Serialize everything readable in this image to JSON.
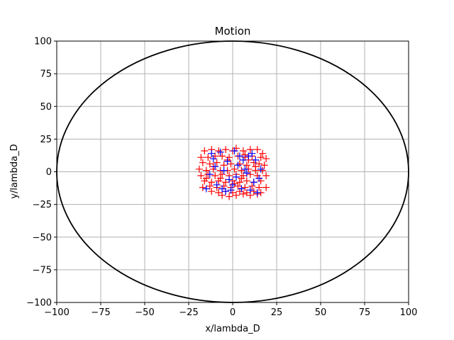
{
  "chart_data": {
    "type": "scatter",
    "title": "Motion",
    "xlabel": "x/lambda_D",
    "ylabel": "y/lambda_D",
    "xlim": [
      -100,
      100
    ],
    "ylim": [
      -100,
      100
    ],
    "xticks": [
      -100,
      -75,
      -50,
      -25,
      0,
      25,
      50,
      75,
      100
    ],
    "yticks": [
      -100,
      -75,
      -50,
      -25,
      0,
      25,
      50,
      75,
      100
    ],
    "xtick_labels": [
      "−100",
      "−75",
      "−50",
      "−25",
      "0",
      "25",
      "50",
      "75",
      "100"
    ],
    "ytick_labels": [
      "−100",
      "−75",
      "−50",
      "−25",
      "0",
      "25",
      "50",
      "75",
      "100"
    ],
    "grid": true,
    "boundary_circle": {
      "center": [
        0,
        0
      ],
      "radius": 100,
      "color": "#000000"
    },
    "series": [
      {
        "marker": "+",
        "color": "#ff0000",
        "points": [
          [
            -16,
            16
          ],
          [
            -12,
            17
          ],
          [
            -8,
            16
          ],
          [
            -4,
            17
          ],
          [
            0,
            16
          ],
          [
            2,
            18
          ],
          [
            6,
            16
          ],
          [
            10,
            17
          ],
          [
            14,
            17
          ],
          [
            17,
            14
          ],
          [
            -18,
            11
          ],
          [
            -14,
            11
          ],
          [
            -10,
            12
          ],
          [
            -6,
            12
          ],
          [
            -2,
            11
          ],
          [
            3,
            12
          ],
          [
            7,
            11
          ],
          [
            11,
            12
          ],
          [
            16,
            11
          ],
          [
            19,
            10
          ],
          [
            -17,
            7
          ],
          [
            -13,
            6
          ],
          [
            -9,
            7
          ],
          [
            -5,
            5
          ],
          [
            -1,
            6
          ],
          [
            4,
            6
          ],
          [
            8,
            5
          ],
          [
            12,
            7
          ],
          [
            15,
            6
          ],
          [
            18,
            5
          ],
          [
            -19,
            2
          ],
          [
            -15,
            1
          ],
          [
            -11,
            2
          ],
          [
            -7,
            1
          ],
          [
            -3,
            1
          ],
          [
            1,
            2
          ],
          [
            5,
            1
          ],
          [
            9,
            2
          ],
          [
            13,
            1
          ],
          [
            17,
            1
          ],
          [
            -18,
            -3
          ],
          [
            -14,
            -2
          ],
          [
            -10,
            -3
          ],
          [
            -6,
            -2
          ],
          [
            -2,
            -3
          ],
          [
            2,
            -2
          ],
          [
            6,
            -3
          ],
          [
            10,
            -2
          ],
          [
            14,
            -3
          ],
          [
            19,
            -3
          ],
          [
            -16,
            -7
          ],
          [
            -12,
            -8
          ],
          [
            -8,
            -7
          ],
          [
            -4,
            -8
          ],
          [
            0,
            -7
          ],
          [
            4,
            -8
          ],
          [
            8,
            -7
          ],
          [
            12,
            -8
          ],
          [
            16,
            -7
          ],
          [
            -17,
            -12
          ],
          [
            -13,
            -11
          ],
          [
            -9,
            -12
          ],
          [
            -5,
            -11
          ],
          [
            -1,
            -12
          ],
          [
            3,
            -11
          ],
          [
            7,
            -12
          ],
          [
            11,
            -11
          ],
          [
            15,
            -12
          ],
          [
            19,
            -12
          ],
          [
            -12,
            -15
          ],
          [
            -8,
            -16
          ],
          [
            -4,
            -15
          ],
          [
            0,
            -16
          ],
          [
            4,
            -15
          ],
          [
            8,
            -16
          ],
          [
            12,
            -15
          ],
          [
            16,
            -16
          ],
          [
            -6,
            -18
          ],
          [
            -2,
            -19
          ],
          [
            2,
            -18
          ],
          [
            6,
            -17
          ],
          [
            10,
            -18
          ],
          [
            14,
            -17
          ],
          [
            -11,
            4
          ],
          [
            -3,
            9
          ],
          [
            5,
            -5
          ],
          [
            9,
            9
          ],
          [
            -7,
            -5
          ],
          [
            1,
            -9
          ],
          [
            13,
            4
          ],
          [
            -15,
            -5
          ],
          [
            7,
            13
          ]
        ]
      },
      {
        "marker": "+",
        "color": "#0000ff",
        "points": [
          [
            -15,
            -13
          ],
          [
            -13,
            -2
          ],
          [
            -12,
            14
          ],
          [
            -11,
            10
          ],
          [
            -10,
            4
          ],
          [
            -9,
            -10
          ],
          [
            -7,
            15
          ],
          [
            -6,
            -13
          ],
          [
            -5,
            1
          ],
          [
            -4,
            -15
          ],
          [
            -3,
            8
          ],
          [
            -2,
            -6
          ],
          [
            -1,
            -14
          ],
          [
            0,
            -10
          ],
          [
            1,
            16
          ],
          [
            2,
            -4
          ],
          [
            3,
            5
          ],
          [
            4,
            12
          ],
          [
            5,
            -13
          ],
          [
            6,
            9
          ],
          [
            7,
            2
          ],
          [
            8,
            -1
          ],
          [
            9,
            12
          ],
          [
            10,
            -14
          ],
          [
            11,
            14
          ],
          [
            12,
            -8
          ],
          [
            13,
            9
          ],
          [
            14,
            -16
          ],
          [
            15,
            -5
          ],
          [
            16,
            2
          ]
        ]
      }
    ]
  }
}
